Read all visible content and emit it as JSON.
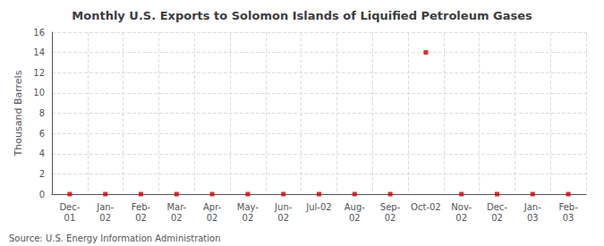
{
  "chart_data": {
    "type": "scatter",
    "title": "Monthly U.S. Exports to Solomon Islands of Liquified Petroleum Gases",
    "ylabel": "Thousand Barrels",
    "annotations": [
      "Source: U.S. Energy Information Administration"
    ],
    "categories": [
      "Dec-\n01",
      "Jan-\n02",
      "Feb-\n02",
      "Mar-\n02",
      "Apr-\n02",
      "May-\n02",
      "Jun-\n02",
      "Jul-02",
      "Aug-\n02",
      "Sep-\n02",
      "Oct-02",
      "Nov-\n02",
      "Dec-\n02",
      "Jan-\n03",
      "Feb-\n03"
    ],
    "values": [
      0,
      0,
      0,
      0,
      0,
      0,
      0,
      0,
      0,
      0,
      14,
      0,
      0,
      0,
      0
    ],
    "color": "#cc0000",
    "marker": "square",
    "ylim": [
      0,
      16
    ],
    "yticks": [
      0,
      2,
      4,
      6,
      8,
      10,
      12,
      14,
      16
    ],
    "grid": true
  }
}
